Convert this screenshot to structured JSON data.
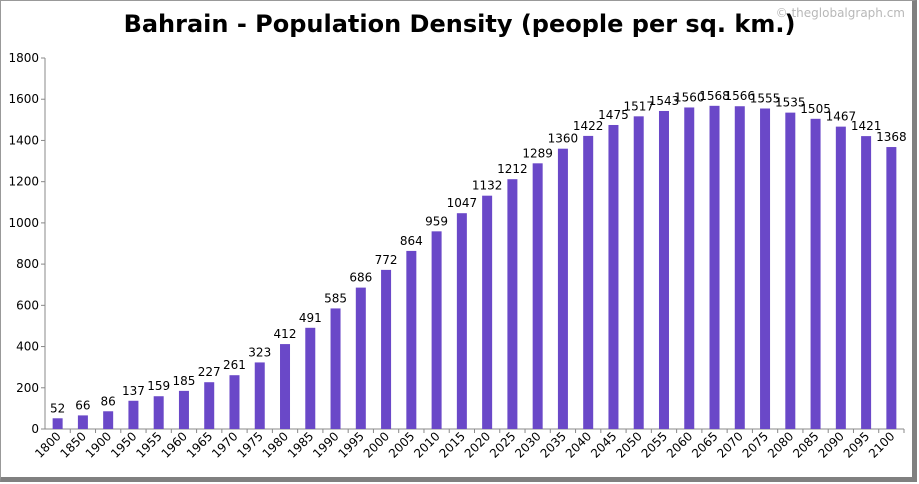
{
  "watermark": "© theglobalgraph.cm",
  "chart_data": {
    "type": "bar",
    "title": "Bahrain - Population Density (people per sq. km.)",
    "xlabel": "",
    "ylabel": "",
    "ylim": [
      0,
      1800
    ],
    "yticks": [
      0,
      200,
      400,
      600,
      800,
      1000,
      1200,
      1400,
      1600,
      1800
    ],
    "grid": false,
    "bar_color": "#6a48c8",
    "categories": [
      "1800",
      "1850",
      "1900",
      "1950",
      "1955",
      "1960",
      "1965",
      "1970",
      "1975",
      "1980",
      "1985",
      "1990",
      "1995",
      "2000",
      "2005",
      "2010",
      "2015",
      "2020",
      "2025",
      "2030",
      "2035",
      "2040",
      "2045",
      "2050",
      "2055",
      "2060",
      "2065",
      "2070",
      "2075",
      "2080",
      "2085",
      "2090",
      "2095",
      "2100"
    ],
    "values": [
      52,
      66,
      86,
      137,
      159,
      185,
      227,
      261,
      323,
      412,
      491,
      585,
      686,
      772,
      864,
      959,
      1047,
      1132,
      1212,
      1289,
      1360,
      1422,
      1475,
      1517,
      1543,
      1560,
      1568,
      1566,
      1555,
      1535,
      1505,
      1467,
      1421,
      1368
    ]
  }
}
